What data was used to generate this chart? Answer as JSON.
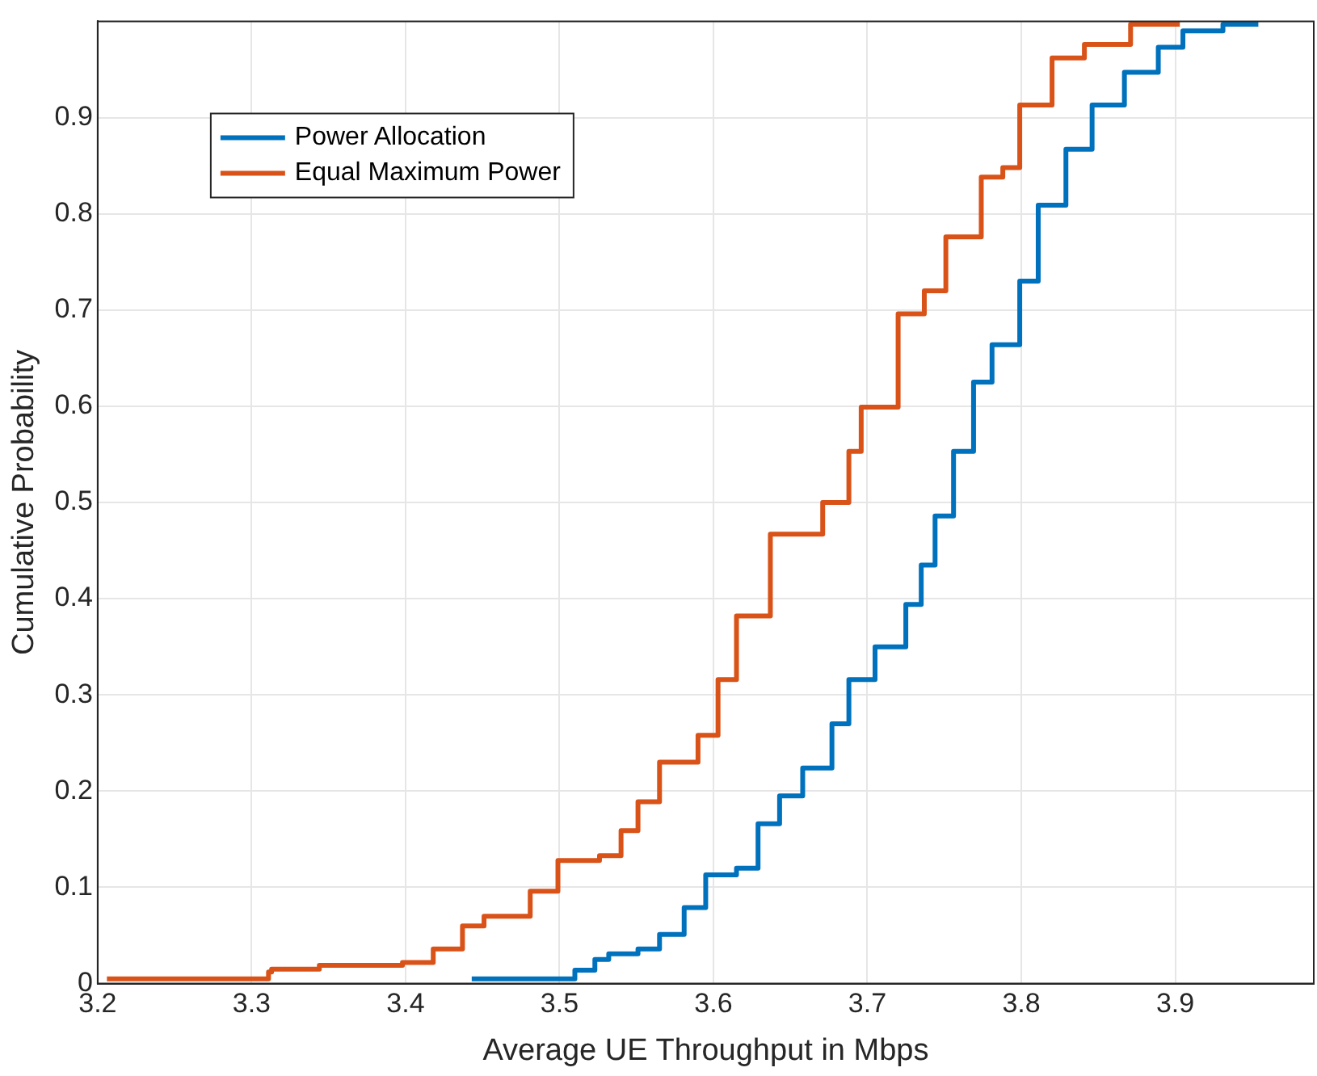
{
  "chart_data": {
    "type": "step",
    "xlabel": "Average UE Throughput in Mbps",
    "ylabel": "Cumulative Probability",
    "xlim": [
      3.2,
      3.99
    ],
    "ylim": [
      0,
      1
    ],
    "xticks": [
      3.2,
      3.3,
      3.4,
      3.5,
      3.6,
      3.7,
      3.8,
      3.9
    ],
    "yticks": [
      0,
      0.1,
      0.2,
      0.3,
      0.4,
      0.5,
      0.6,
      0.7,
      0.8,
      0.9
    ],
    "grid": true,
    "legend": "top left",
    "marker": "none",
    "line_style": "solid",
    "series": [
      {
        "name": "Power Allocation",
        "color": "#0072bd",
        "x": [
          3.443,
          3.51,
          3.523,
          3.532,
          3.551,
          3.565,
          3.581,
          3.595,
          3.615,
          3.629,
          3.643,
          3.658,
          3.677,
          3.688,
          3.705,
          3.725,
          3.735,
          3.744,
          3.756,
          3.769,
          3.781,
          3.799,
          3.811,
          3.829,
          3.846,
          3.867,
          3.889,
          3.905,
          3.931,
          3.954
        ],
        "values": [
          0.005,
          0.005,
          0.014,
          0.025,
          0.031,
          0.036,
          0.051,
          0.079,
          0.113,
          0.12,
          0.166,
          0.195,
          0.224,
          0.27,
          0.316,
          0.35,
          0.394,
          0.435,
          0.486,
          0.553,
          0.625,
          0.664,
          0.73,
          0.809,
          0.867,
          0.913,
          0.947,
          0.973,
          0.99,
          0.997
        ]
      },
      {
        "name": "Equal Maximum Power",
        "color": "#d95319",
        "x": [
          3.206,
          3.311,
          3.313,
          3.344,
          3.398,
          3.418,
          3.437,
          3.451,
          3.481,
          3.499,
          3.526,
          3.54,
          3.551,
          3.565,
          3.59,
          3.603,
          3.615,
          3.637,
          3.671,
          3.688,
          3.696,
          3.72,
          3.737,
          3.751,
          3.774,
          3.788,
          3.799,
          3.82,
          3.841,
          3.871,
          3.903
        ],
        "values": [
          0.005,
          0.005,
          0.012,
          0.015,
          0.019,
          0.022,
          0.036,
          0.06,
          0.07,
          0.096,
          0.128,
          0.133,
          0.159,
          0.189,
          0.23,
          0.258,
          0.316,
          0.382,
          0.467,
          0.5,
          0.553,
          0.599,
          0.696,
          0.72,
          0.776,
          0.838,
          0.848,
          0.913,
          0.962,
          0.976,
          0.997
        ]
      }
    ]
  }
}
